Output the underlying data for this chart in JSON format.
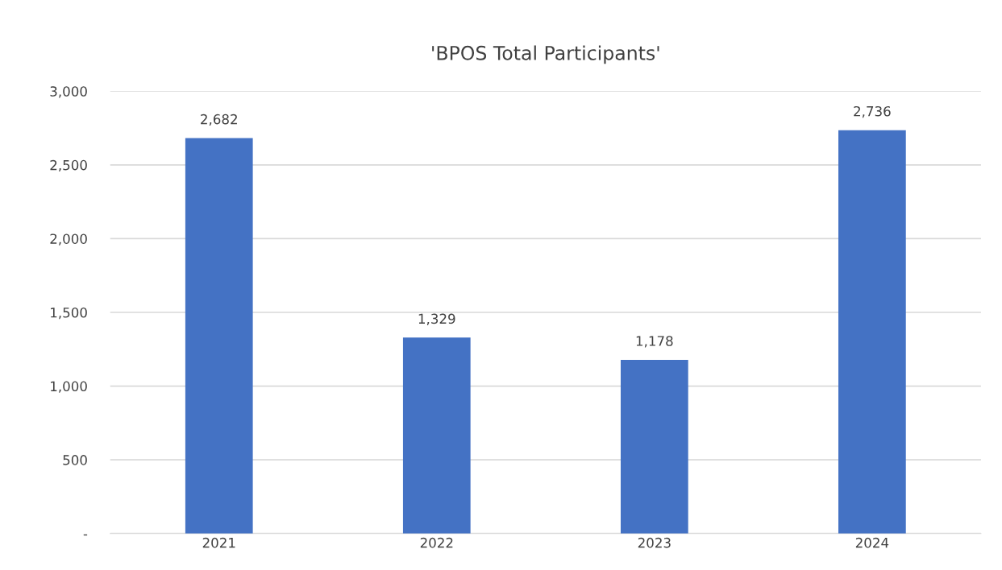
{
  "chart_data": {
    "type": "bar",
    "title": "'BPOS Total Participants'",
    "categories": [
      "2021",
      "2022",
      "2023",
      "2024"
    ],
    "values": [
      2682,
      1329,
      1178,
      2736
    ],
    "value_labels": [
      "2,682",
      "1,329",
      "1,178",
      "2,736"
    ],
    "color": "#4472c4",
    "ylim": [
      0,
      3000
    ],
    "yticks": [
      {
        "value": 0,
        "label": "-"
      },
      500,
      {
        "value": 1000,
        "label": "1,000"
      },
      {
        "value": 1500,
        "label": "1,500"
      },
      {
        "value": 2000,
        "label": "2,000"
      },
      {
        "value": 2500,
        "label": "2,500"
      },
      {
        "value": 3000,
        "label": "3,000"
      }
    ],
    "grid": "y"
  }
}
